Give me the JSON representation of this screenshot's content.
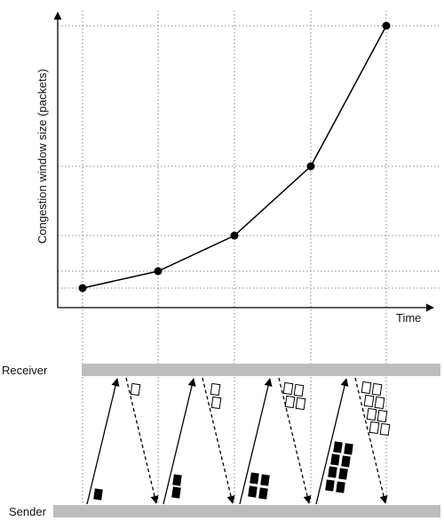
{
  "chart": {
    "y_axis_label": "Congestion window size (packets)",
    "x_axis_label": "Time",
    "point_values": [
      1,
      2,
      4,
      8,
      16
    ]
  },
  "timeline": {
    "receiver_label": "Receiver",
    "sender_label": "Sender",
    "rounds": [
      {
        "packets": 1,
        "acks": 1
      },
      {
        "packets": 2,
        "acks": 2
      },
      {
        "packets": 4,
        "acks": 4
      },
      {
        "packets": 8,
        "acks": 8
      }
    ]
  },
  "colors": {
    "bar": "#bdbdbd",
    "ink": "#000000",
    "grid": "#666666"
  }
}
